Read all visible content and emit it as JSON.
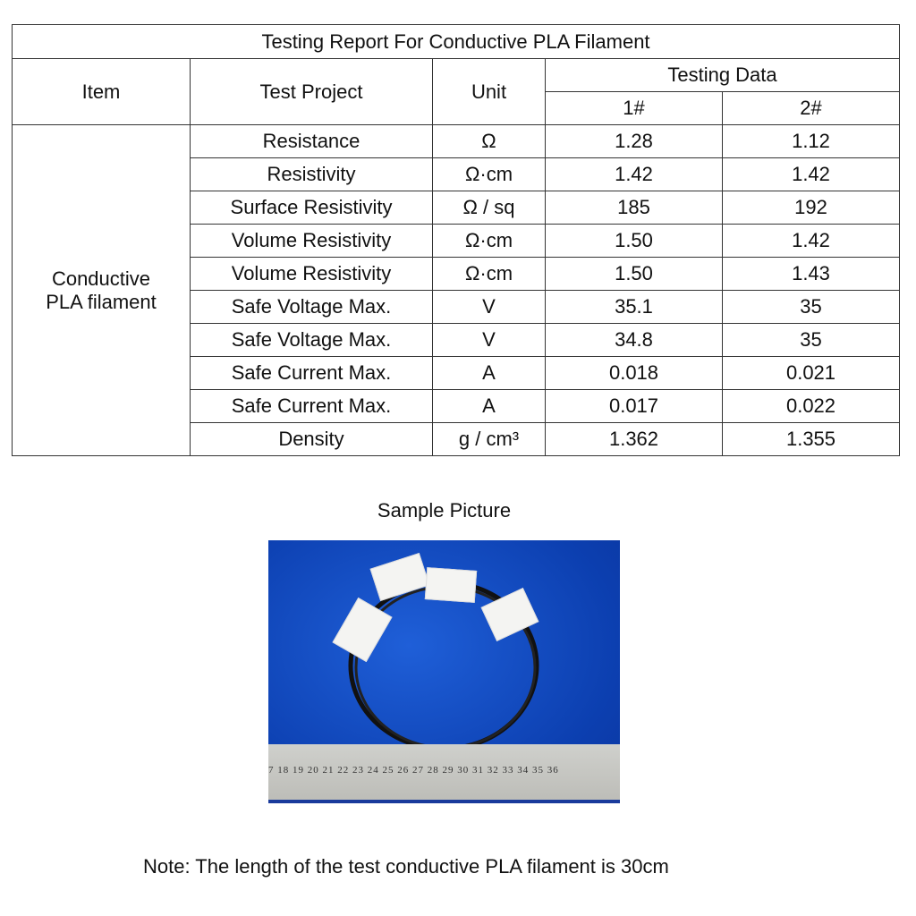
{
  "table": {
    "title": "Testing Report For Conductive PLA Filament",
    "headers": {
      "item": "Item",
      "project": "Test Project",
      "unit": "Unit",
      "testing_data": "Testing Data",
      "sample1": "1#",
      "sample2": "2#"
    },
    "item": "Conductive PLA filament",
    "rows": [
      {
        "project": "Resistance",
        "unit": "Ω",
        "v1": "1.28",
        "v2": "1.12"
      },
      {
        "project": "Resistivity",
        "unit": "Ω·cm",
        "v1": "1.42",
        "v2": "1.42"
      },
      {
        "project": "Surface Resistivity",
        "unit": "Ω / sq",
        "v1": "185",
        "v2": "192"
      },
      {
        "project": "Volume Resistivity",
        "unit": "Ω·cm",
        "v1": "1.50",
        "v2": "1.42"
      },
      {
        "project": "Volume Resistivity",
        "unit": "Ω·cm",
        "v1": "1.50",
        "v2": "1.43"
      },
      {
        "project": "Safe Voltage Max.",
        "unit": "V",
        "v1": "35.1",
        "v2": "35"
      },
      {
        "project": "Safe Voltage Max.",
        "unit": "V",
        "v1": "34.8",
        "v2": "35"
      },
      {
        "project": "Safe Current Max.",
        "unit": "A",
        "v1": "0.018",
        "v2": "0.021"
      },
      {
        "project": "Safe Current Max.",
        "unit": "A",
        "v1": "0.017",
        "v2": "0.022"
      },
      {
        "project": "Density",
        "unit": "g / cm³",
        "v1": "1.362",
        "v2": "1.355"
      }
    ]
  },
  "sample_caption": "Sample  Picture",
  "ruler_marks": "7 18 19 20 21 22 23 24 25 26 27 28 29 30 31 32 33 34 35 36",
  "note": "Note: The length of the test conductive PLA filament is 30cm"
}
